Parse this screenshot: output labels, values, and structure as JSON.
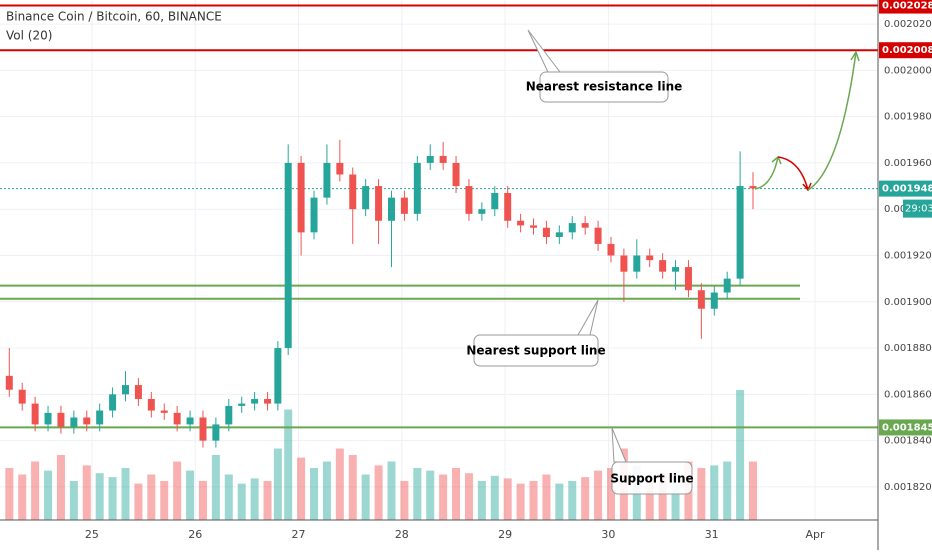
{
  "chart_data": {
    "type": "candlestick",
    "title": "Binance Coin / Bitcoin, 60, BINANCE",
    "indicator": "Vol (20)",
    "up_color": "#26a69a",
    "down_color": "#ef5350",
    "x": [
      24.2,
      24.325,
      24.45,
      24.575,
      24.7,
      24.825,
      24.95,
      25.075,
      25.2,
      25.325,
      25.45,
      25.575,
      25.7,
      25.825,
      25.95,
      26.075,
      26.2,
      26.325,
      26.45,
      26.575,
      26.7,
      26.8,
      26.9,
      27.025,
      27.15,
      27.275,
      27.4,
      27.525,
      27.65,
      27.775,
      27.9,
      28.025,
      28.15,
      28.275,
      28.4,
      28.525,
      28.65,
      28.775,
      28.9,
      29.025,
      29.15,
      29.275,
      29.4,
      29.525,
      29.65,
      29.775,
      29.9,
      30.025,
      30.15,
      30.275,
      30.4,
      30.525,
      30.65,
      30.775,
      30.9,
      31.025,
      31.15,
      31.275,
      31.4
    ],
    "open": [
      0.001868,
      0.001862,
      0.001856,
      0.001847,
      0.001852,
      0.001846,
      0.00185,
      0.001847,
      0.001853,
      0.00186,
      0.001864,
      0.001858,
      0.001853,
      0.001852,
      0.001847,
      0.00185,
      0.00184,
      0.001847,
      0.001855,
      0.001856,
      0.001858,
      0.001856,
      0.00188,
      0.00196,
      0.00193,
      0.001945,
      0.00196,
      0.001955,
      0.00194,
      0.00195,
      0.001935,
      0.001945,
      0.001938,
      0.00196,
      0.001963,
      0.00196,
      0.00195,
      0.001938,
      0.00194,
      0.001947,
      0.001935,
      0.001933,
      0.001932,
      0.001928,
      0.00193,
      0.001934,
      0.001932,
      0.001925,
      0.00192,
      0.001913,
      0.00192,
      0.001918,
      0.001913,
      0.001915,
      0.001905,
      0.001897,
      0.001904,
      0.00191,
      0.00195
    ],
    "high": [
      0.00188,
      0.001865,
      0.001859,
      0.001855,
      0.001855,
      0.001853,
      0.001853,
      0.001856,
      0.001863,
      0.00187,
      0.001867,
      0.001861,
      0.001856,
      0.001855,
      0.001853,
      0.001853,
      0.00185,
      0.001858,
      0.001859,
      0.001861,
      0.001861,
      0.001883,
      0.001968,
      0.001963,
      0.001948,
      0.001968,
      0.00197,
      0.001958,
      0.001953,
      0.001953,
      0.001948,
      0.001948,
      0.001963,
      0.001968,
      0.001969,
      0.001963,
      0.001953,
      0.001943,
      0.00195,
      0.00195,
      0.001938,
      0.001936,
      0.001935,
      0.001933,
      0.001937,
      0.001937,
      0.001935,
      0.001928,
      0.001923,
      0.001927,
      0.001923,
      0.001921,
      0.001918,
      0.001918,
      0.001908,
      0.001907,
      0.001913,
      0.001965,
      0.001956
    ],
    "low": [
      0.001859,
      0.001853,
      0.001844,
      0.001844,
      0.001843,
      0.001843,
      0.001844,
      0.001844,
      0.00185,
      0.001857,
      0.001855,
      0.00185,
      0.001849,
      0.001844,
      0.001844,
      0.001837,
      0.001837,
      0.001844,
      0.001852,
      0.001853,
      0.001853,
      0.001853,
      0.001877,
      0.00192,
      0.001927,
      0.001942,
      0.001952,
      0.001925,
      0.001937,
      0.001925,
      0.001915,
      0.001935,
      0.001935,
      0.001957,
      0.001957,
      0.001947,
      0.001935,
      0.001935,
      0.001937,
      0.001932,
      0.00193,
      0.001929,
      0.001925,
      0.001925,
      0.001927,
      0.001929,
      0.001922,
      0.001917,
      0.0019,
      0.00191,
      0.001915,
      0.00191,
      0.001905,
      0.001902,
      0.001884,
      0.001894,
      0.001901,
      0.001907,
      0.00194
    ],
    "close": [
      0.001862,
      0.001856,
      0.001847,
      0.001852,
      0.001846,
      0.00185,
      0.001847,
      0.001853,
      0.00186,
      0.001864,
      0.001858,
      0.001853,
      0.001852,
      0.001847,
      0.00185,
      0.00184,
      0.001847,
      0.001855,
      0.001856,
      0.001858,
      0.001856,
      0.00188,
      0.00196,
      0.00193,
      0.001945,
      0.00196,
      0.001955,
      0.00194,
      0.00195,
      0.001935,
      0.001945,
      0.001938,
      0.00196,
      0.001963,
      0.00196,
      0.00195,
      0.001938,
      0.00194,
      0.001947,
      0.001935,
      0.001933,
      0.001932,
      0.001928,
      0.00193,
      0.001934,
      0.001932,
      0.001925,
      0.00192,
      0.001913,
      0.00192,
      0.001918,
      0.001913,
      0.001915,
      0.001905,
      0.001897,
      0.001904,
      0.00191,
      0.00195,
      0.001949
    ],
    "volume": [
      40,
      35,
      45,
      38,
      50,
      30,
      42,
      36,
      33,
      40,
      28,
      35,
      30,
      45,
      38,
      30,
      50,
      35,
      28,
      32,
      30,
      55,
      85,
      48,
      40,
      45,
      55,
      50,
      35,
      42,
      45,
      30,
      40,
      38,
      35,
      40,
      36,
      30,
      34,
      32,
      28,
      30,
      35,
      28,
      30,
      33,
      38,
      40,
      55,
      42,
      30,
      36,
      38,
      45,
      40,
      42,
      45,
      100,
      45
    ],
    "xlim": [
      24.11,
      32.61
    ],
    "ylim": [
      0.0018057,
      0.0020304
    ],
    "xticks": [
      25,
      26,
      27,
      28,
      29,
      30,
      31,
      {
        "value": 32,
        "label": "Apr"
      }
    ],
    "yticks": [
      {
        "value": 0.00202,
        "label": "0.0020200"
      },
      {
        "value": 0.002,
        "label": "0.0020000"
      },
      {
        "value": 0.00198,
        "label": "0.0019800"
      },
      {
        "value": 0.00196,
        "label": "0.0019600"
      },
      {
        "value": 0.00194,
        "label": "0.0019"
      },
      {
        "value": 0.00192,
        "label": "0.0019200"
      },
      {
        "value": 0.0019,
        "label": "0.0019000"
      },
      {
        "value": 0.00188,
        "label": "0.0018800"
      },
      {
        "value": 0.00186,
        "label": "0.0018600"
      },
      {
        "value": 0.00184,
        "label": "0.0018400"
      },
      {
        "value": 0.00182,
        "label": "0.0018200"
      }
    ],
    "lines": [
      {
        "value": 0.002028,
        "label": "0.0020280",
        "color": "#d50000"
      },
      {
        "value": 0.0020087,
        "label": "0.0020087",
        "color": "#d50000"
      },
      {
        "value": 0.001907,
        "color": "#6aa84f"
      },
      {
        "value": 0.0019013,
        "color": "#6aa84f"
      },
      {
        "value": 0.0018457,
        "label": "0.0018457",
        "color": "#6aa84f"
      }
    ],
    "last_price": {
      "value": 0.0019489,
      "label": "0.0019489"
    },
    "countdown": "29:03",
    "annotations": [
      "Nearest resistance line",
      "Nearest support line",
      "Support line"
    ]
  }
}
